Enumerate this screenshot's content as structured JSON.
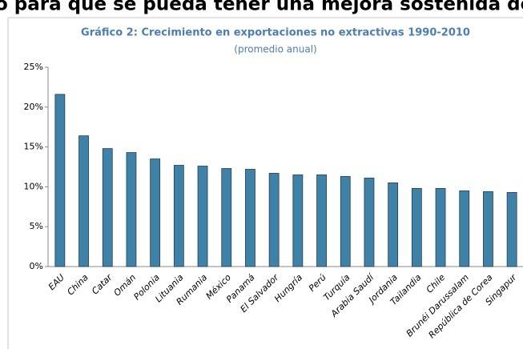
{
  "page_heading": "o para que se pueda tener una mejora sostenida de",
  "chart_data": {
    "type": "bar",
    "title": "Gráfico 2: Crecimiento en exportaciones no extractivas 1990-2010",
    "subtitle": "(promedio anual)",
    "categories": [
      "EAU",
      "China",
      "Catar",
      "Omán",
      "Polonia",
      "Lituania",
      "Rumania",
      "México",
      "Panamá",
      "El Salvador",
      "Hungría",
      "Perú",
      "Turquía",
      "Arabia Saudí",
      "Jordania",
      "Tailandia",
      "Chile",
      "Brunéi Darussalam",
      "República de Corea",
      "Singapur"
    ],
    "values": [
      21.6,
      16.4,
      14.8,
      14.3,
      13.5,
      12.7,
      12.6,
      12.3,
      12.2,
      11.7,
      11.5,
      11.5,
      11.3,
      11.1,
      10.5,
      9.8,
      9.8,
      9.5,
      9.4,
      9.3
    ],
    "color": "#3e82a8",
    "ylim": [
      0,
      25
    ],
    "yticks": [
      {
        "value": 0,
        "label": "0%"
      },
      {
        "value": 5,
        "label": "5%"
      },
      {
        "value": 10,
        "label": "10%"
      },
      {
        "value": 15,
        "label": "15%"
      },
      {
        "value": 20,
        "label": "20%"
      },
      {
        "value": 25,
        "label": "25%"
      }
    ],
    "grid": false
  }
}
